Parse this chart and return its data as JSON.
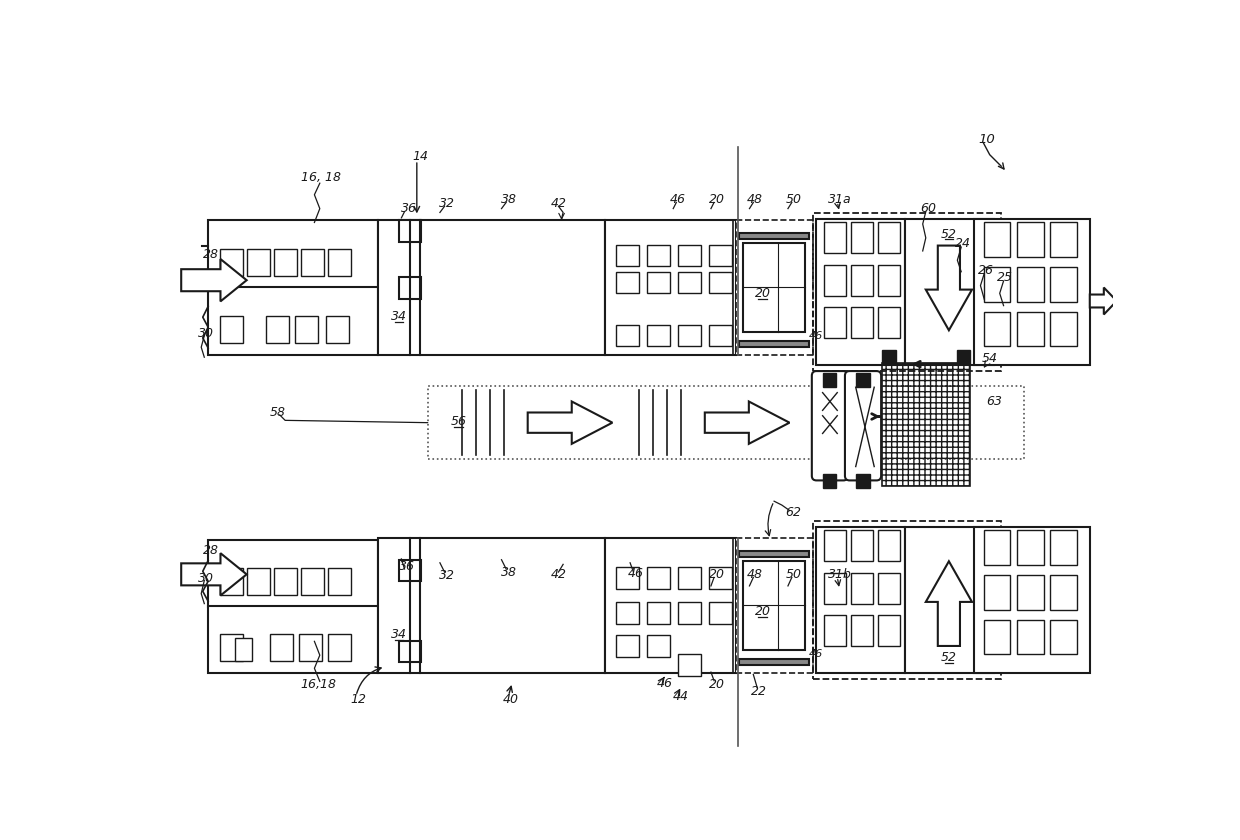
{
  "bg": "#ffffff",
  "lc": "#1a1a1a",
  "fig_w": 12.4,
  "fig_h": 8.4,
  "dpi": 100
}
